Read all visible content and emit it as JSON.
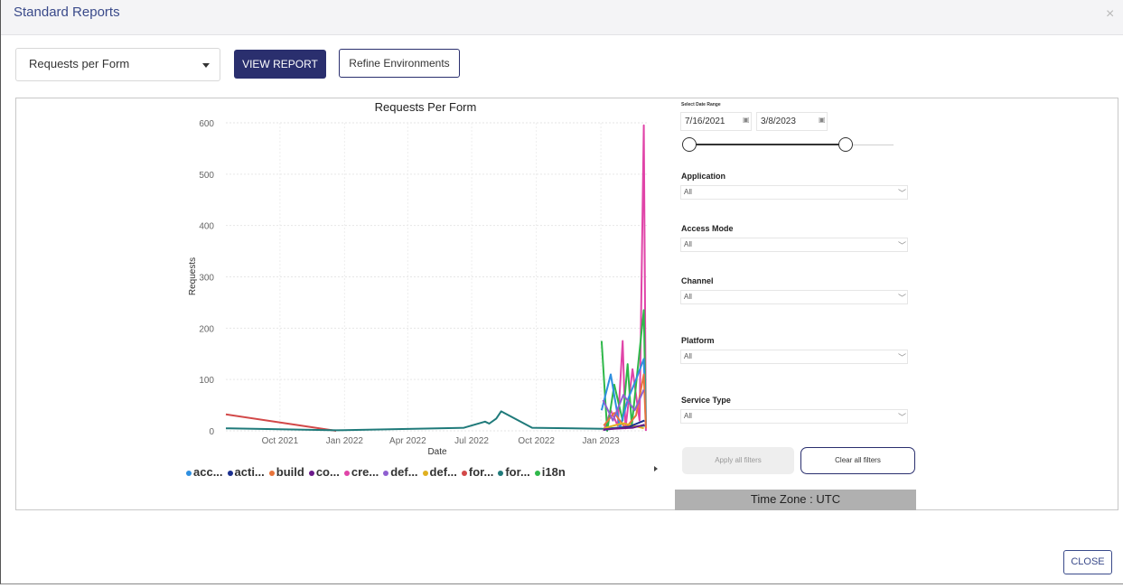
{
  "dialog": {
    "title": "Standard Reports",
    "close_icon": "×",
    "close_button": "CLOSE"
  },
  "toolbar": {
    "report_select_value": "Requests per Form",
    "view_report_label": "VIEW REPORT",
    "refine_label": "Refine Environments"
  },
  "filters": {
    "date_range_label": "Select Date Range",
    "date_from": "7/16/2021",
    "date_to": "3/8/2023",
    "application_label": "Application",
    "application_value": "All",
    "access_mode_label": "Access Mode",
    "access_mode_value": "All",
    "channel_label": "Channel",
    "channel_value": "All",
    "platform_label": "Platform",
    "platform_value": "All",
    "service_type_label": "Service Type",
    "service_type_value": "All",
    "apply_label": "Apply all filters",
    "clear_label": "Clear all filters",
    "timezone_label": "Time Zone : UTC"
  },
  "chart_data": {
    "type": "line",
    "title": "Requests Per Form",
    "xlabel": "Date",
    "ylabel": "Requests",
    "ylim": [
      0,
      600
    ],
    "yticks": [
      0,
      100,
      200,
      300,
      400,
      500,
      600
    ],
    "xtick_labels": [
      "Oct 2021",
      "Jan 2022",
      "Apr 2022",
      "Jul 2022",
      "Oct 2022",
      "Jan 2023"
    ],
    "grid": true,
    "legend_position": "bottom",
    "legend": [
      {
        "label": "acc...",
        "color": "#2e8fe0"
      },
      {
        "label": "acti...",
        "color": "#1a2f8f"
      },
      {
        "label": "build",
        "color": "#e8743b"
      },
      {
        "label": "co...",
        "color": "#6b1a8a"
      },
      {
        "label": "cre...",
        "color": "#e044a8"
      },
      {
        "label": "def...",
        "color": "#8f5fd0"
      },
      {
        "label": "def...",
        "color": "#e0b020"
      },
      {
        "label": "for...",
        "color": "#d24848"
      },
      {
        "label": "for...",
        "color": "#1f7a7a"
      },
      {
        "label": "i18n",
        "color": "#2fb84a"
      }
    ],
    "series": [
      {
        "name": "for...",
        "color": "#d24848",
        "points": [
          [
            "2021-07-16",
            32
          ],
          [
            "2021-12-20",
            0
          ]
        ]
      },
      {
        "name": "for...",
        "color": "#1f7a7a",
        "points": [
          [
            "2021-07-16",
            5
          ],
          [
            "2021-12-20",
            1
          ],
          [
            "2022-06-20",
            6
          ],
          [
            "2022-07-20",
            18
          ],
          [
            "2022-07-26",
            14
          ],
          [
            "2022-08-05",
            24
          ],
          [
            "2022-08-12",
            38
          ],
          [
            "2022-09-25",
            6
          ],
          [
            "2023-01-05",
            4
          ],
          [
            "2023-03-05",
            10
          ]
        ]
      },
      {
        "name": "cre...",
        "color": "#e044a8",
        "points": [
          [
            "2023-01-05",
            0
          ],
          [
            "2023-01-15",
            40
          ],
          [
            "2023-01-25",
            10
          ],
          [
            "2023-02-01",
            175
          ],
          [
            "2023-02-05",
            5
          ],
          [
            "2023-02-15",
            120
          ],
          [
            "2023-02-25",
            20
          ],
          [
            "2023-03-03",
            595
          ],
          [
            "2023-03-06",
            0
          ]
        ]
      },
      {
        "name": "i18n",
        "color": "#2fb84a",
        "points": [
          [
            "2023-01-02",
            175
          ],
          [
            "2023-01-10",
            0
          ],
          [
            "2023-01-20",
            90
          ],
          [
            "2023-02-01",
            20
          ],
          [
            "2023-02-08",
            130
          ],
          [
            "2023-02-14",
            10
          ],
          [
            "2023-03-03",
            235
          ],
          [
            "2023-03-06",
            15
          ]
        ]
      },
      {
        "name": "acc...",
        "color": "#2e8fe0",
        "points": [
          [
            "2023-01-02",
            40
          ],
          [
            "2023-01-15",
            110
          ],
          [
            "2023-01-28",
            5
          ],
          [
            "2023-02-08",
            60
          ],
          [
            "2023-02-20",
            100
          ],
          [
            "2023-03-03",
            140
          ],
          [
            "2023-03-06",
            10
          ]
        ]
      },
      {
        "name": "build",
        "color": "#e8743b",
        "points": [
          [
            "2023-01-05",
            10
          ],
          [
            "2023-01-20",
            35
          ],
          [
            "2023-02-05",
            5
          ],
          [
            "2023-02-20",
            30
          ],
          [
            "2023-03-03",
            110
          ],
          [
            "2023-03-06",
            5
          ]
        ]
      },
      {
        "name": "def...",
        "color": "#8f5fd0",
        "points": [
          [
            "2023-01-04",
            60
          ],
          [
            "2023-01-18",
            20
          ],
          [
            "2023-02-02",
            70
          ],
          [
            "2023-02-18",
            40
          ],
          [
            "2023-03-03",
            80
          ]
        ]
      },
      {
        "name": "def...",
        "color": "#e0b020",
        "points": [
          [
            "2023-01-05",
            5
          ],
          [
            "2023-02-01",
            15
          ],
          [
            "2023-03-03",
            5
          ]
        ]
      },
      {
        "name": "acti...",
        "color": "#1a2f8f",
        "points": [
          [
            "2023-01-05",
            2
          ],
          [
            "2023-02-10",
            8
          ],
          [
            "2023-03-04",
            20
          ]
        ]
      },
      {
        "name": "co...",
        "color": "#6b1a8a",
        "points": [
          [
            "2023-01-05",
            3
          ],
          [
            "2023-02-15",
            6
          ],
          [
            "2023-03-04",
            12
          ]
        ]
      }
    ]
  }
}
